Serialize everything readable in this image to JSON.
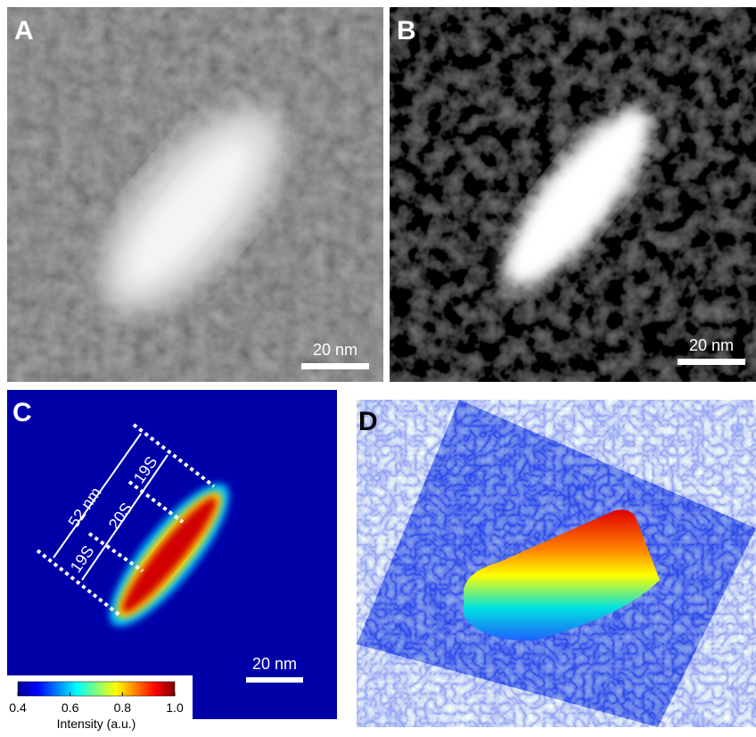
{
  "panels": [
    {
      "label": "A",
      "scale_bar": "20 nm"
    },
    {
      "label": "B",
      "scale_bar": "20 nm"
    },
    {
      "label": "C",
      "scale_bar": "20 nm",
      "annotations": [
        "52 nm",
        "19S",
        "20S",
        "19S"
      ]
    },
    {
      "label": "D"
    }
  ],
  "colorbar": {
    "title": "Intensity (a.u.)",
    "lim": [
      0.4,
      1
    ],
    "ticks": [
      0.4,
      0.6,
      0.8,
      {
        "value": 1,
        "label": "1.0"
      }
    ]
  }
}
